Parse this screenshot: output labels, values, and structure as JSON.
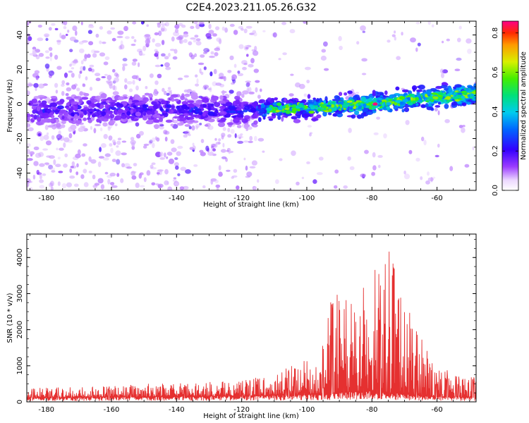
{
  "title": "C2E4.2023.211.05.26.G32",
  "chart_data": [
    {
      "type": "heatmap",
      "xlabel": "Height of straight line (km)",
      "ylabel": "Frequency (Hz)",
      "xlim": [
        -186,
        -48
      ],
      "ylim": [
        -50,
        48
      ],
      "x_ticks": [
        -180,
        -160,
        -140,
        -120,
        -100,
        -80,
        -60
      ],
      "y_ticks": [
        -40,
        -20,
        0,
        20,
        40
      ],
      "colorbar": {
        "label": "Normalized spectral amplitude",
        "range": [
          0.0,
          0.86
        ],
        "ticks": [
          "0.0",
          "0.2",
          "0.4",
          "0.6",
          "0.8"
        ]
      },
      "ridge": {
        "points": [
          [
            -186,
            -4
          ],
          [
            -160,
            -3
          ],
          [
            -140,
            -3
          ],
          [
            -120,
            -4
          ],
          [
            -110,
            -3
          ],
          [
            -100,
            -2
          ],
          [
            -80,
            0
          ],
          [
            -60,
            4
          ],
          [
            -48,
            6
          ]
        ],
        "peak": {
          "x": -79,
          "y": 0,
          "value": 0.86
        }
      }
    },
    {
      "type": "line",
      "xlabel": "Height of straight line (km)",
      "ylabel": "SNR (10 * v/v)",
      "xlim": [
        -186,
        -48
      ],
      "ylim": [
        0,
        4650
      ],
      "x_ticks": [
        -180,
        -160,
        -140,
        -120,
        -100,
        -80,
        -60
      ],
      "y_ticks": [
        0,
        1000,
        2000,
        3000,
        4000
      ],
      "color": "#e53030",
      "envelope": {
        "x": [
          -186,
          -170,
          -160,
          -150,
          -140,
          -130,
          -120,
          -110,
          -105,
          -100,
          -96,
          -93,
          -91,
          -89,
          -87,
          -85,
          -83,
          -81,
          -79,
          -77,
          -75,
          -73,
          -71,
          -69,
          -66,
          -63,
          -60,
          -56,
          -52,
          -48
        ],
        "y_peak": [
          380,
          420,
          450,
          500,
          520,
          560,
          600,
          800,
          1000,
          1200,
          1100,
          2800,
          3300,
          2700,
          3200,
          2500,
          3800,
          2900,
          3700,
          3500,
          4400,
          4650,
          3200,
          2600,
          2000,
          1400,
          900,
          900,
          700,
          700
        ],
        "y_base": [
          120,
          120,
          140,
          140,
          150,
          160,
          170,
          180,
          190,
          200,
          210,
          220,
          240,
          260,
          280,
          300,
          320,
          300,
          290,
          280,
          260,
          240,
          220,
          200,
          180,
          160,
          150,
          140,
          130,
          120
        ]
      }
    }
  ]
}
